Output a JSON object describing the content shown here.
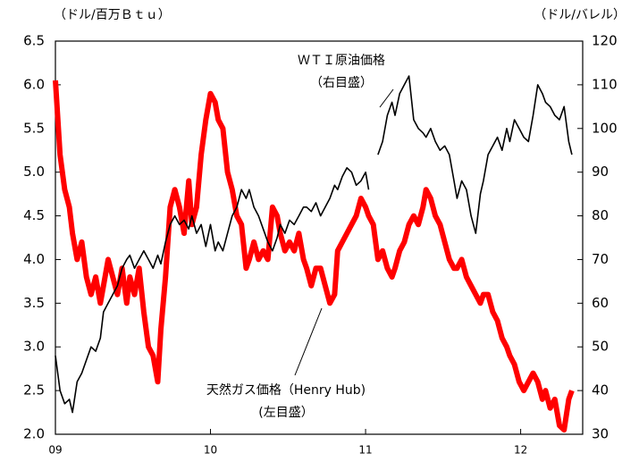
{
  "chart_data": {
    "type": "line",
    "y_unit_label": "（ドル/百万Ｂｔｕ）",
    "y2_unit_label": "（ドル/バレル）",
    "annotations": [
      "ＷＴＩ原油価格",
      "（右目盛）",
      "天然ガス価格（Henry Hub)",
      "(左目盛）"
    ],
    "xlim": [
      2009,
      2012.4
    ],
    "xticks": [
      {
        "value": 2009,
        "label": "09"
      },
      {
        "value": 2010,
        "label": "10"
      },
      {
        "value": 2011,
        "label": "11"
      },
      {
        "value": 2012,
        "label": "12"
      }
    ],
    "ylim": [
      2.0,
      6.5
    ],
    "yticks": [
      {
        "value": 2.0,
        "label": "2.0"
      },
      2.5,
      {
        "value": 3.0,
        "label": "3.0"
      },
      3.5,
      {
        "value": 4.0,
        "label": "4.0"
      },
      4.5,
      {
        "value": 5.0,
        "label": "5.0"
      },
      5.5,
      {
        "value": 6.0,
        "label": "6.0"
      },
      6.5
    ],
    "y2lim": [
      30,
      120
    ],
    "y2ticks": [
      30,
      40,
      50,
      60,
      70,
      80,
      90,
      100,
      110,
      120
    ],
    "x": [
      2009.0,
      2009.03,
      2009.06,
      2009.09,
      2009.11,
      2009.14,
      2009.17,
      2009.2,
      2009.23,
      2009.26,
      2009.29,
      2009.31,
      2009.34,
      2009.37,
      2009.4,
      2009.43,
      2009.46,
      2009.48,
      2009.51,
      2009.54,
      2009.57,
      2009.6,
      2009.63,
      2009.66,
      2009.68,
      2009.71,
      2009.74,
      2009.77,
      2009.8,
      2009.83,
      2009.86,
      2009.88,
      2009.91,
      2009.94,
      2009.97,
      2010.0,
      2010.03,
      2010.05,
      2010.08,
      2010.11,
      2010.14,
      2010.17,
      2010.2,
      2010.23,
      2010.25,
      2010.28,
      2010.31,
      2010.34,
      2010.37,
      2010.4,
      2010.43,
      2010.45,
      2010.48,
      2010.51,
      2010.54,
      2010.57,
      2010.6,
      2010.62,
      2010.65,
      2010.68,
      2010.71,
      2010.74,
      2010.77,
      2010.8,
      2010.82,
      2010.85,
      2010.88,
      2010.91,
      2010.94,
      2010.97,
      2011.0,
      2011.02,
      2011.05,
      2011.08,
      2011.11,
      2011.14,
      2011.17,
      2011.19,
      2011.22,
      2011.25,
      2011.28,
      2011.31,
      2011.34,
      2011.37,
      2011.39,
      2011.42,
      2011.45,
      2011.48,
      2011.51,
      2011.54,
      2011.57,
      2011.59,
      2011.62,
      2011.65,
      2011.68,
      2011.71,
      2011.74,
      2011.76,
      2011.79,
      2011.82,
      2011.85,
      2011.88,
      2011.91,
      2011.93,
      2011.96,
      2011.99,
      2012.02,
      2012.05,
      2012.08,
      2012.11,
      2012.14,
      2012.16,
      2012.19,
      2012.22,
      2012.25,
      2012.28,
      2012.31,
      2012.33
    ],
    "series": [
      {
        "name": "天然ガス価格",
        "color": "#ff0000",
        "values": [
          6.05,
          5.2,
          4.8,
          4.6,
          4.3,
          4.0,
          4.2,
          3.8,
          3.6,
          3.8,
          3.5,
          3.7,
          4.0,
          3.8,
          3.6,
          3.9,
          3.5,
          3.8,
          3.6,
          3.9,
          3.4,
          3.0,
          2.9,
          2.6,
          3.2,
          3.8,
          4.6,
          4.8,
          4.6,
          4.3,
          4.9,
          4.4,
          4.6,
          5.2,
          5.6,
          5.9,
          5.8,
          5.6,
          5.5,
          5.0,
          4.8,
          4.5,
          4.4,
          3.9,
          4.0,
          4.2,
          4.0,
          4.1,
          4.0,
          4.6,
          4.5,
          4.3,
          4.1,
          4.2,
          4.1,
          4.3,
          4.0,
          3.9,
          3.7,
          3.9,
          3.9,
          3.7,
          3.5,
          3.6,
          4.1,
          4.2,
          4.3,
          4.4,
          4.5,
          4.7,
          4.6,
          4.5,
          4.4,
          4.0,
          4.1,
          3.9,
          3.8,
          3.9,
          4.1,
          4.2,
          4.4,
          4.5,
          4.4,
          4.6,
          4.8,
          4.7,
          4.5,
          4.4,
          4.2,
          4.0,
          3.9,
          3.9,
          4.0,
          3.8,
          3.7,
          3.6,
          3.5,
          3.6,
          3.6,
          3.4,
          3.3,
          3.1,
          3.0,
          2.9,
          2.8,
          2.6,
          2.5,
          2.6,
          2.7,
          2.6,
          2.4,
          2.5,
          2.3,
          2.4,
          2.1,
          2.05,
          2.4,
          2.5
        ]
      },
      {
        "name": "ＷＴＩ原油価格",
        "color": "#000000",
        "axis": "y2",
        "values": [
          48,
          40,
          37,
          38,
          35,
          42,
          44,
          47,
          50,
          49,
          52,
          58,
          60,
          62,
          64,
          68,
          70,
          71,
          68,
          70,
          72,
          70,
          68,
          71,
          69,
          74,
          78,
          80,
          78,
          79,
          77,
          80,
          76,
          78,
          73,
          78,
          72,
          74,
          72,
          76,
          80,
          82,
          86,
          84,
          86,
          82,
          80,
          77,
          74,
          72,
          75,
          78,
          76,
          79,
          78,
          80,
          82,
          82,
          81,
          83,
          80,
          82,
          84,
          87,
          86,
          89,
          91,
          90,
          87,
          88,
          90,
          86,
          null,
          94,
          97,
          103,
          106,
          103,
          108,
          110,
          112,
          102,
          100,
          99,
          98,
          100,
          97,
          95,
          96,
          94,
          88,
          84,
          88,
          86,
          80,
          76,
          85,
          88,
          94,
          96,
          98,
          95,
          100,
          97,
          102,
          100,
          98,
          97,
          103,
          110,
          108,
          106,
          105,
          103,
          102,
          105,
          97,
          94
        ]
      }
    ]
  }
}
